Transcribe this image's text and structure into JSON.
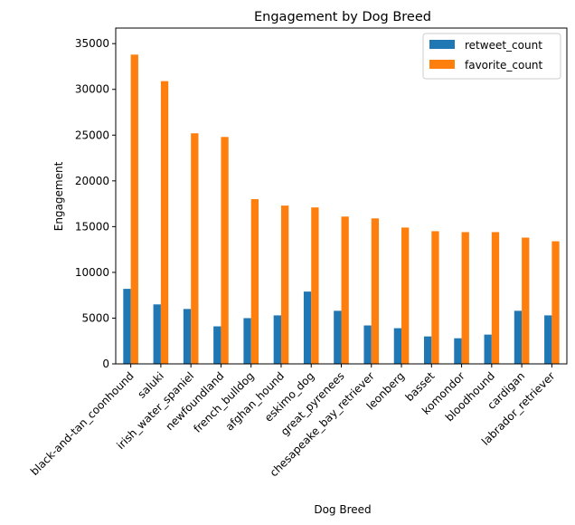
{
  "chart_data": {
    "type": "bar",
    "title": "Engagement by Dog Breed",
    "xlabel": "Dog Breed",
    "ylabel": "Engagement",
    "ylim": [
      0,
      35000
    ],
    "yticks": [
      0,
      5000,
      10000,
      15000,
      20000,
      25000,
      30000,
      35000
    ],
    "grid": false,
    "legend_position": "top-right",
    "categories": [
      "black-and-tan_coonhound",
      "saluki",
      "irish_water_spaniel",
      "newfoundland",
      "french_bulldog",
      "afghan_hound",
      "eskimo_dog",
      "great_pyrenees",
      "chesapeake_bay_retriever",
      "leonberg",
      "basset",
      "komondor",
      "bloodhound",
      "cardigan",
      "labrador_retriever"
    ],
    "series": [
      {
        "name": "retweet_count",
        "color": "#1f77b4",
        "values": [
          8200,
          6500,
          6000,
          4100,
          5000,
          5300,
          7900,
          5800,
          4200,
          3900,
          3000,
          2800,
          3200,
          5800,
          5300
        ]
      },
      {
        "name": "favorite_count",
        "color": "#ff7f0e",
        "values": [
          33800,
          30900,
          25200,
          24800,
          18000,
          17300,
          17100,
          16100,
          15900,
          14900,
          14500,
          14400,
          14400,
          13800,
          13400
        ]
      }
    ]
  }
}
